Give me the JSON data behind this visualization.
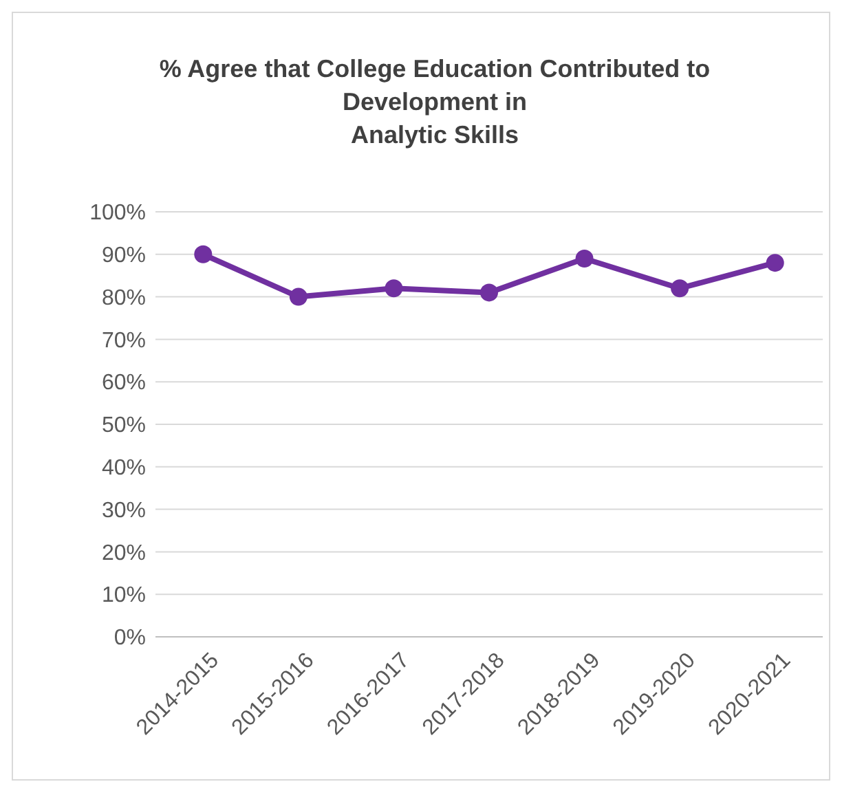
{
  "chart_data": {
    "type": "line",
    "title": "% Agree that College Education Contributed to\nDevelopment in\nAnalytic Skills",
    "categories": [
      "2014-2015",
      "2015-2016",
      "2016-2017",
      "2017-2018",
      "2018-2019",
      "2019-2020",
      "2020-2021"
    ],
    "series": [
      {
        "color": "#7030a0",
        "values": [
          90,
          80,
          82,
          81,
          89,
          82,
          88
        ]
      }
    ],
    "ylim": [
      0,
      100
    ],
    "yticks": [
      {
        "value": 0,
        "label": "0%"
      },
      {
        "value": 10,
        "label": "10%"
      },
      {
        "value": 20,
        "label": "20%"
      },
      {
        "value": 30,
        "label": "30%"
      },
      {
        "value": 40,
        "label": "40%"
      },
      {
        "value": 50,
        "label": "50%"
      },
      {
        "value": 60,
        "label": "60%"
      },
      {
        "value": 70,
        "label": "70%"
      },
      {
        "value": 80,
        "label": "80%"
      },
      {
        "value": 90,
        "label": "90%"
      },
      {
        "value": 100,
        "label": "100%"
      }
    ],
    "grid": "y",
    "marker": "circle",
    "line_style": "solid"
  }
}
